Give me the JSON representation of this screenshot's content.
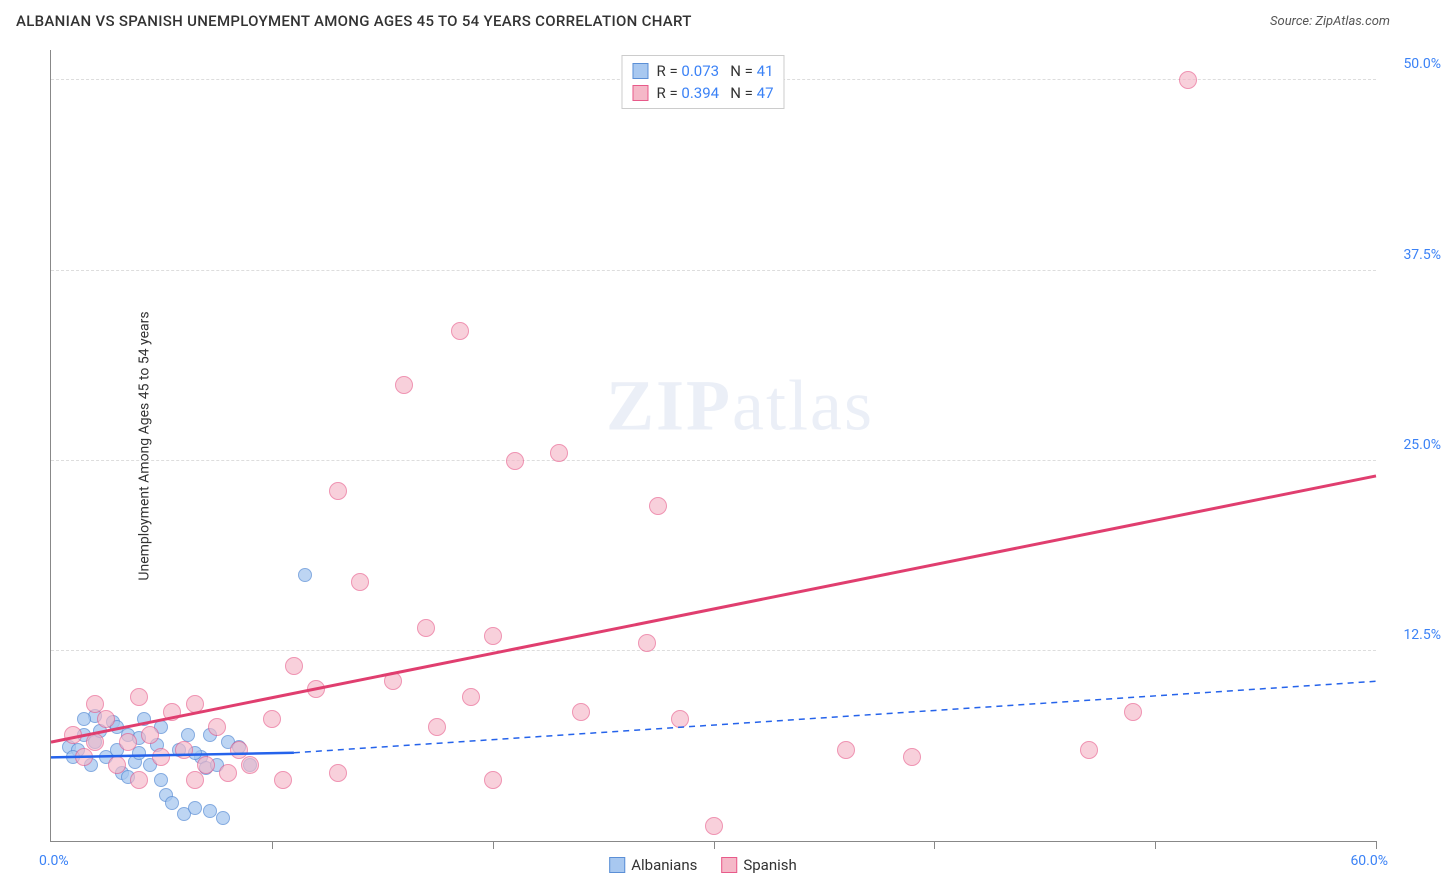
{
  "header": {
    "title": "ALBANIAN VS SPANISH UNEMPLOYMENT AMONG AGES 45 TO 54 YEARS CORRELATION CHART",
    "source": "Source: ZipAtlas.com"
  },
  "chart": {
    "type": "scatter",
    "ylabel": "Unemployment Among Ages 45 to 54 years",
    "xlim": [
      0,
      60
    ],
    "ylim": [
      0,
      52
    ],
    "x_axis_min_label": "0.0%",
    "x_axis_max_label": "60.0%",
    "yticks": [
      {
        "value": 12.5,
        "label": "12.5%"
      },
      {
        "value": 25.0,
        "label": "25.0%"
      },
      {
        "value": 37.5,
        "label": "37.5%"
      },
      {
        "value": 50.0,
        "label": "50.0%"
      }
    ],
    "xticks": [
      10,
      20,
      30,
      40,
      50,
      60
    ],
    "grid_color": "#dddddd",
    "background_color": "#ffffff",
    "watermark": "ZIPatlas",
    "series": [
      {
        "name": "Albanians",
        "fill": "#a8c8f0",
        "stroke": "#5b8fd6",
        "marker_radius": 7,
        "marker_opacity": 0.75,
        "line_stroke": "#2563eb",
        "line_width": 2.5,
        "line_dash_extend": "6,5",
        "trend_start": [
          0,
          5.5
        ],
        "trend_solid_end": [
          11,
          5.8
        ],
        "trend_end": [
          60,
          10.5
        ],
        "stats": {
          "R": "0.073",
          "N": "41"
        },
        "points": [
          [
            0.8,
            6.2
          ],
          [
            1.2,
            6.0
          ],
          [
            1.5,
            7.0
          ],
          [
            1.8,
            5.0
          ],
          [
            2.0,
            6.5
          ],
          [
            2.2,
            7.2
          ],
          [
            2.5,
            5.5
          ],
          [
            2.8,
            7.8
          ],
          [
            3.0,
            6.0
          ],
          [
            3.2,
            4.5
          ],
          [
            3.5,
            7.0
          ],
          [
            3.8,
            5.2
          ],
          [
            4.0,
            6.8
          ],
          [
            4.2,
            8.0
          ],
          [
            4.5,
            5.0
          ],
          [
            4.8,
            6.3
          ],
          [
            5.0,
            7.5
          ],
          [
            5.2,
            3.0
          ],
          [
            5.5,
            2.5
          ],
          [
            5.8,
            6.0
          ],
          [
            6.0,
            1.8
          ],
          [
            6.2,
            7.0
          ],
          [
            6.5,
            2.2
          ],
          [
            6.8,
            5.5
          ],
          [
            7.0,
            4.8
          ],
          [
            7.2,
            7.0
          ],
          [
            7.2,
            2.0
          ],
          [
            7.5,
            5.0
          ],
          [
            7.8,
            1.5
          ],
          [
            8.0,
            6.5
          ],
          [
            1.0,
            5.5
          ],
          [
            2.0,
            8.2
          ],
          [
            3.0,
            7.5
          ],
          [
            4.0,
            5.8
          ],
          [
            5.0,
            4.0
          ],
          [
            6.5,
            5.8
          ],
          [
            3.5,
            4.2
          ],
          [
            11.5,
            17.5
          ],
          [
            9.0,
            5.0
          ],
          [
            8.5,
            6.2
          ],
          [
            1.5,
            8.0
          ]
        ]
      },
      {
        "name": "Spanish",
        "fill": "#f5b8c8",
        "stroke": "#e85a8a",
        "marker_radius": 9,
        "marker_opacity": 0.65,
        "line_stroke": "#e03e6f",
        "line_width": 3,
        "trend_start": [
          0,
          6.5
        ],
        "trend_end": [
          60,
          24.0
        ],
        "stats": {
          "R": "0.394",
          "N": "47"
        },
        "points": [
          [
            1.0,
            7.0
          ],
          [
            1.5,
            5.5
          ],
          [
            2.0,
            6.5
          ],
          [
            2.5,
            8.0
          ],
          [
            3.0,
            5.0
          ],
          [
            3.5,
            6.5
          ],
          [
            4.0,
            9.5
          ],
          [
            4.5,
            7.0
          ],
          [
            5.0,
            5.5
          ],
          [
            5.5,
            8.5
          ],
          [
            6.0,
            6.0
          ],
          [
            6.5,
            9.0
          ],
          [
            7.0,
            5.0
          ],
          [
            7.5,
            7.5
          ],
          [
            8.0,
            4.5
          ],
          [
            8.5,
            6.0
          ],
          [
            9.0,
            5.0
          ],
          [
            10.0,
            8.0
          ],
          [
            10.5,
            4.0
          ],
          [
            11.0,
            11.5
          ],
          [
            12.0,
            10.0
          ],
          [
            13.0,
            4.5
          ],
          [
            13.0,
            23.0
          ],
          [
            14.0,
            17.0
          ],
          [
            15.5,
            10.5
          ],
          [
            16.0,
            30.0
          ],
          [
            17.0,
            14.0
          ],
          [
            17.5,
            7.5
          ],
          [
            18.5,
            33.5
          ],
          [
            19.0,
            9.5
          ],
          [
            20.0,
            4.0
          ],
          [
            20.0,
            13.5
          ],
          [
            21.0,
            25.0
          ],
          [
            23.0,
            25.5
          ],
          [
            24.0,
            8.5
          ],
          [
            27.0,
            13.0
          ],
          [
            27.5,
            22.0
          ],
          [
            28.5,
            8.0
          ],
          [
            30.0,
            1.0
          ],
          [
            36.0,
            6.0
          ],
          [
            39.0,
            5.5
          ],
          [
            47.0,
            6.0
          ],
          [
            49.0,
            8.5
          ],
          [
            51.5,
            50.0
          ],
          [
            4.0,
            4.0
          ],
          [
            2.0,
            9.0
          ],
          [
            6.5,
            4.0
          ]
        ]
      }
    ],
    "stats_labels": {
      "R": "R = ",
      "N": "N = "
    },
    "bottom_legend": [
      {
        "label": "Albanians",
        "fill": "#a8c8f0",
        "stroke": "#5b8fd6"
      },
      {
        "label": "Spanish",
        "fill": "#f5b8c8",
        "stroke": "#e85a8a"
      }
    ]
  }
}
